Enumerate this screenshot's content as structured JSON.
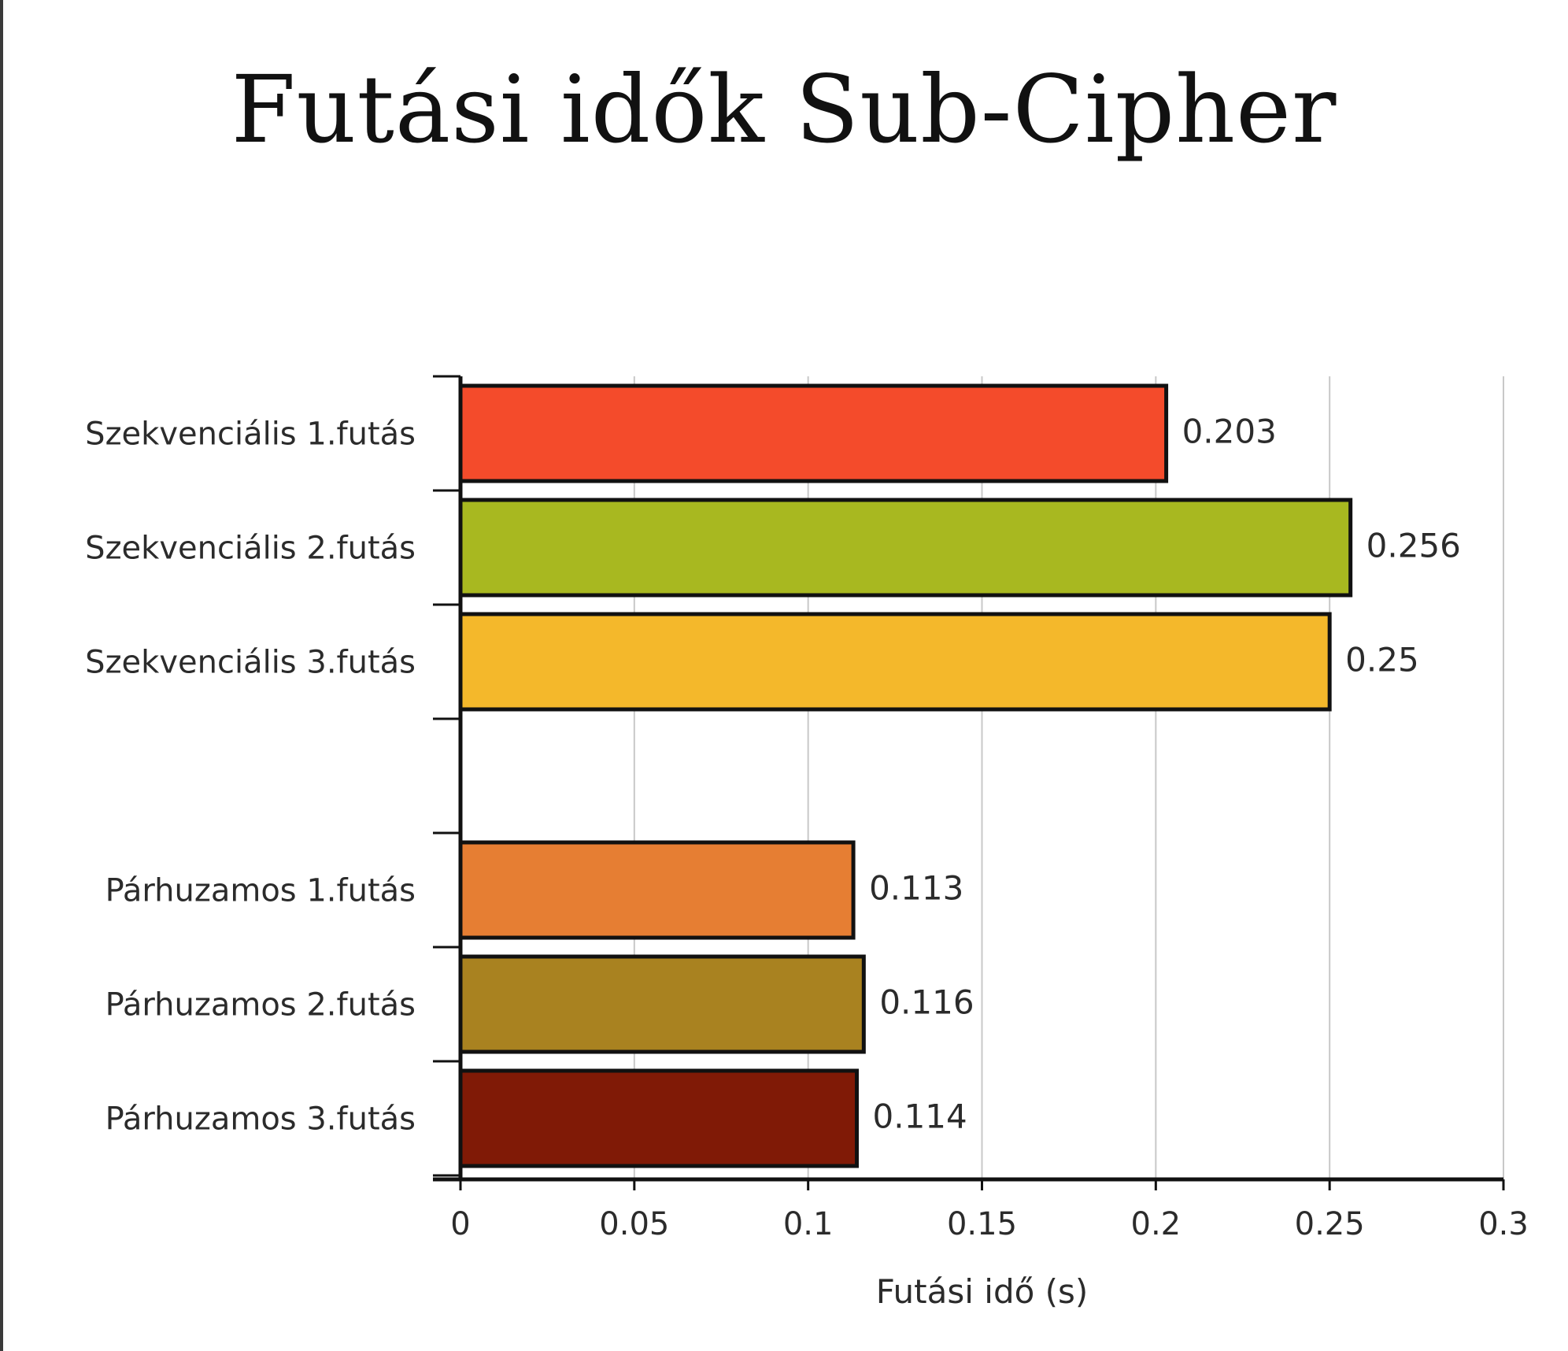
{
  "chart_data": {
    "type": "bar",
    "orientation": "horizontal",
    "title": "Futási idők Sub-Cipher",
    "xlabel": "Futási idő (s)",
    "ylabel": "",
    "xlim": [
      0,
      0.3
    ],
    "xticks": [
      "0",
      "0.05",
      "0.1",
      "0.15",
      "0.2",
      "0.25",
      "0.3"
    ],
    "grid": "vertical",
    "groups": [
      {
        "bars": [
          {
            "category": "Szekvenciális 1.futás",
            "value": 0.203,
            "label": "0.203",
            "color": "#f44b2b"
          },
          {
            "category": "Szekvenciális 2.futás",
            "value": 0.256,
            "label": "0.256",
            "color": "#a8b820"
          },
          {
            "category": "Szekvenciális 3.futás",
            "value": 0.25,
            "label": "0.25",
            "color": "#f4b82b"
          }
        ]
      },
      {
        "bars": [
          {
            "category": "Párhuzamos 1.futás",
            "value": 0.113,
            "label": "0.113",
            "color": "#e67e33"
          },
          {
            "category": "Párhuzamos 2.futás",
            "value": 0.116,
            "label": "0.116",
            "color": "#a98220"
          },
          {
            "category": "Párhuzamos 3.futás",
            "value": 0.114,
            "label": "0.114",
            "color": "#801a06"
          }
        ]
      }
    ]
  }
}
